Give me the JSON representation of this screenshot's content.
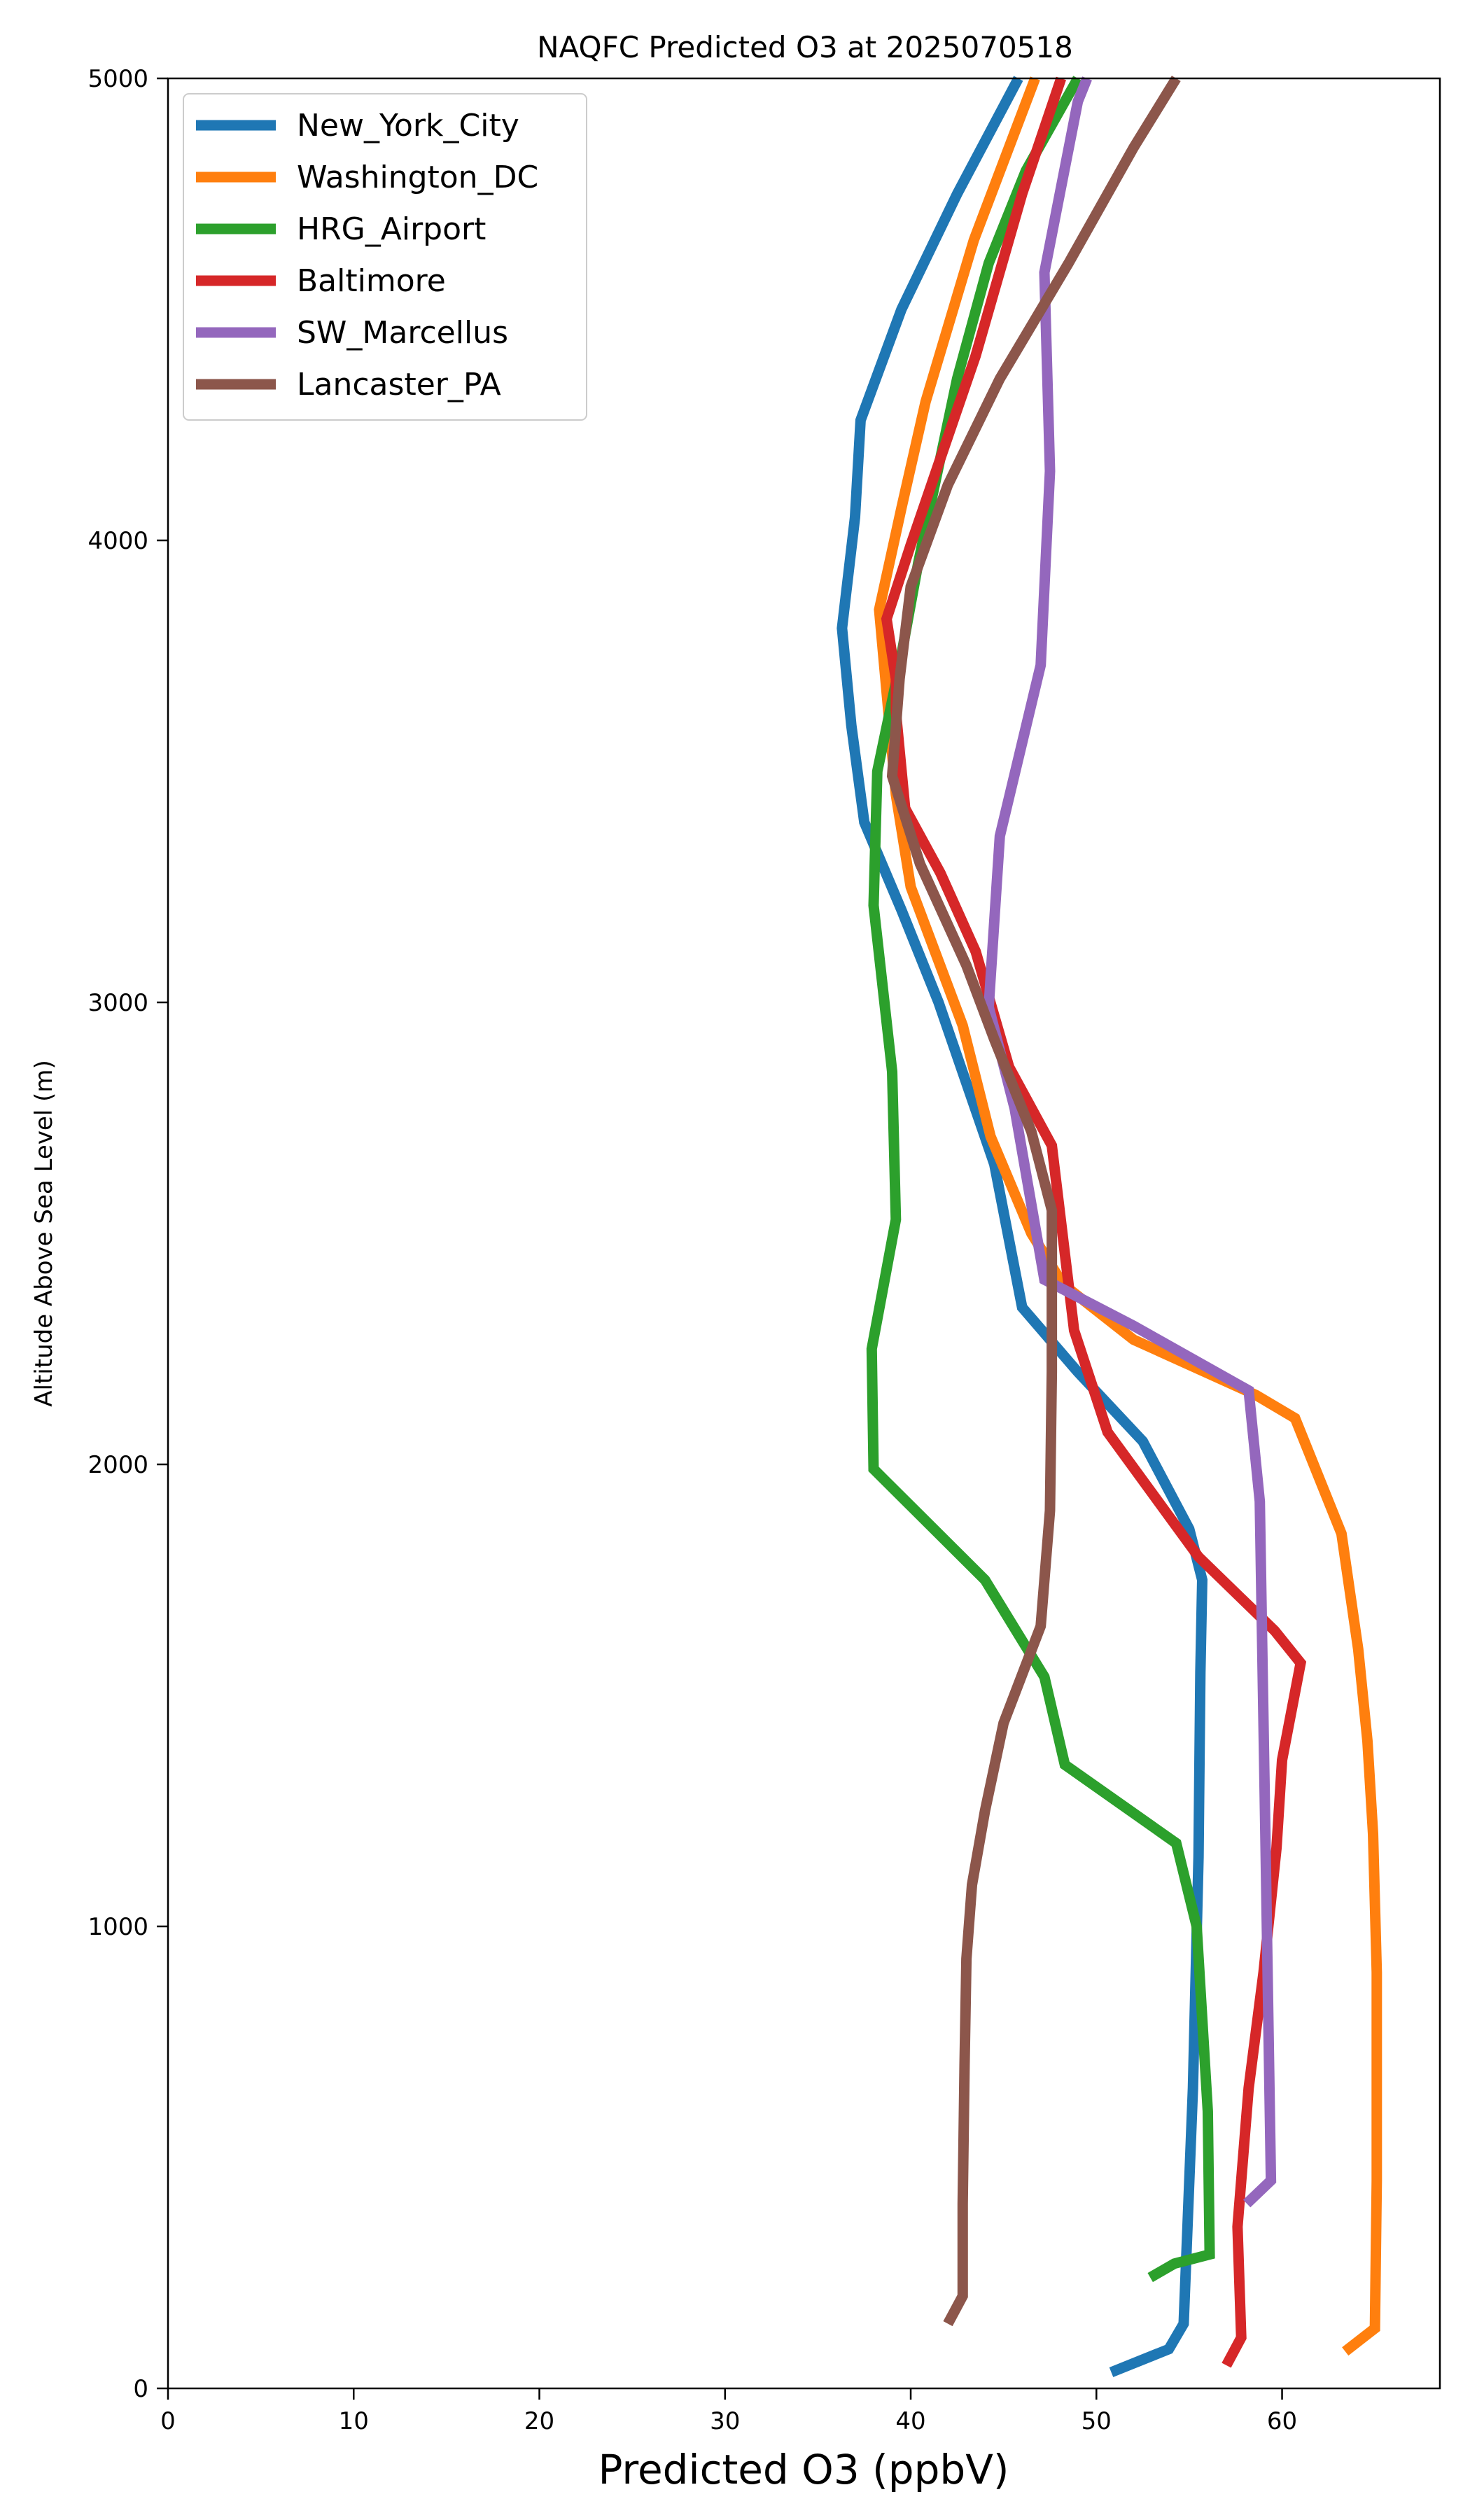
{
  "chart_data": {
    "type": "line",
    "title": "NAQFC Predicted O3 at 2025070518",
    "xlabel": "Predicted O3 (ppbV)",
    "ylabel": "Altitude Above Sea Level (m)",
    "xlim": [
      0,
      68.5
    ],
    "ylim": [
      0,
      5000
    ],
    "xticks": [
      0,
      10,
      20,
      30,
      40,
      50,
      60
    ],
    "yticks": [
      0,
      1000,
      2000,
      3000,
      4000,
      5000
    ],
    "legend_position": "upper-left",
    "grid": false,
    "series": [
      {
        "name": "New_York_City",
        "color": "#1f77b4",
        "points": [
          [
            50.8,
            35
          ],
          [
            53.9,
            85
          ],
          [
            54.7,
            140
          ],
          [
            55.2,
            650
          ],
          [
            55.5,
            1150
          ],
          [
            55.6,
            1550
          ],
          [
            55.7,
            1750
          ],
          [
            55.0,
            1860
          ],
          [
            52.5,
            2050
          ],
          [
            49.0,
            2200
          ],
          [
            46.0,
            2340
          ],
          [
            44.5,
            2650
          ],
          [
            41.5,
            3000
          ],
          [
            39.5,
            3200
          ],
          [
            37.5,
            3390
          ],
          [
            36.8,
            3600
          ],
          [
            36.3,
            3810
          ],
          [
            37.0,
            4050
          ],
          [
            37.3,
            4260
          ],
          [
            39.5,
            4500
          ],
          [
            42.5,
            4750
          ],
          [
            45.8,
            5000
          ]
        ]
      },
      {
        "name": "Washington_DC",
        "color": "#ff7f0e",
        "points": [
          [
            63.4,
            80
          ],
          [
            65.0,
            130
          ],
          [
            65.1,
            450
          ],
          [
            65.1,
            900
          ],
          [
            64.9,
            1200
          ],
          [
            64.6,
            1400
          ],
          [
            64.1,
            1600
          ],
          [
            63.2,
            1850
          ],
          [
            60.7,
            2100
          ],
          [
            58.6,
            2150
          ],
          [
            52.0,
            2270
          ],
          [
            48.2,
            2390
          ],
          [
            46.5,
            2500
          ],
          [
            44.3,
            2710
          ],
          [
            42.8,
            2950
          ],
          [
            40.0,
            3250
          ],
          [
            39.2,
            3450
          ],
          [
            38.3,
            3850
          ],
          [
            39.5,
            4070
          ],
          [
            40.8,
            4300
          ],
          [
            43.4,
            4650
          ],
          [
            46.7,
            5000
          ]
        ]
      },
      {
        "name": "HRG_Airport",
        "color": "#2ca02c",
        "points": [
          [
            52.9,
            240
          ],
          [
            54.2,
            270
          ],
          [
            56.1,
            290
          ],
          [
            56.0,
            600
          ],
          [
            55.4,
            1000
          ],
          [
            54.3,
            1180
          ],
          [
            48.3,
            1350
          ],
          [
            47.2,
            1540
          ],
          [
            44.0,
            1750
          ],
          [
            38.0,
            1990
          ],
          [
            37.9,
            2250
          ],
          [
            39.2,
            2530
          ],
          [
            39.0,
            2850
          ],
          [
            38.0,
            3210
          ],
          [
            38.2,
            3500
          ],
          [
            39.4,
            3730
          ],
          [
            40.4,
            3950
          ],
          [
            42.5,
            4350
          ],
          [
            44.2,
            4600
          ],
          [
            46.2,
            4800
          ],
          [
            49.0,
            5000
          ]
        ]
      },
      {
        "name": "Baltimore",
        "color": "#d62728",
        "points": [
          [
            57.0,
            50
          ],
          [
            57.8,
            110
          ],
          [
            57.6,
            350
          ],
          [
            58.2,
            650
          ],
          [
            59.0,
            900
          ],
          [
            59.7,
            1170
          ],
          [
            60.0,
            1360
          ],
          [
            61.0,
            1570
          ],
          [
            59.6,
            1640
          ],
          [
            55.5,
            1800
          ],
          [
            50.6,
            2070
          ],
          [
            48.8,
            2290
          ],
          [
            47.6,
            2690
          ],
          [
            45.3,
            2860
          ],
          [
            43.5,
            3110
          ],
          [
            41.6,
            3280
          ],
          [
            39.7,
            3420
          ],
          [
            39.2,
            3630
          ],
          [
            39.2,
            3700
          ],
          [
            38.7,
            3830
          ],
          [
            40.0,
            3990
          ],
          [
            43.5,
            4400
          ],
          [
            46.0,
            4750
          ],
          [
            48.1,
            5000
          ]
        ]
      },
      {
        "name": "SW_Marcellus",
        "color": "#9467bd",
        "points": [
          [
            58.1,
            400
          ],
          [
            59.4,
            450
          ],
          [
            59.3,
            700
          ],
          [
            59.1,
            1200
          ],
          [
            58.8,
            1920
          ],
          [
            58.2,
            2160
          ],
          [
            52.0,
            2300
          ],
          [
            47.2,
            2400
          ],
          [
            45.6,
            2770
          ],
          [
            44.2,
            2990
          ],
          [
            44.8,
            3360
          ],
          [
            47.0,
            3730
          ],
          [
            47.5,
            4150
          ],
          [
            47.2,
            4580
          ],
          [
            49.0,
            4950
          ],
          [
            49.5,
            5000
          ]
        ]
      },
      {
        "name": "Lancaster_PA",
        "color": "#8c564b",
        "points": [
          [
            42.0,
            140
          ],
          [
            42.8,
            200
          ],
          [
            42.8,
            400
          ],
          [
            42.9,
            700
          ],
          [
            43.0,
            930
          ],
          [
            43.3,
            1090
          ],
          [
            44.0,
            1250
          ],
          [
            45.0,
            1440
          ],
          [
            47.0,
            1650
          ],
          [
            47.5,
            1900
          ],
          [
            47.6,
            2200
          ],
          [
            47.6,
            2550
          ],
          [
            46.5,
            2720
          ],
          [
            44.5,
            2920
          ],
          [
            43.0,
            3080
          ],
          [
            40.5,
            3300
          ],
          [
            39.0,
            3490
          ],
          [
            39.4,
            3700
          ],
          [
            40.0,
            3900
          ],
          [
            42.0,
            4120
          ],
          [
            44.8,
            4350
          ],
          [
            48.5,
            4600
          ],
          [
            52.0,
            4850
          ],
          [
            54.3,
            5000
          ]
        ]
      }
    ]
  }
}
